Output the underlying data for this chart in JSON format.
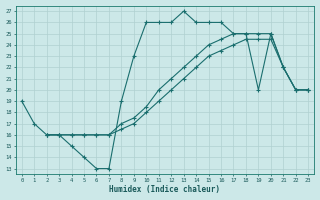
{
  "title": "",
  "xlabel": "Humidex (Indice chaleur)",
  "bg_color": "#cce8e8",
  "grid_color": "#b0d0d0",
  "line_color": "#1a6e6e",
  "xlim": [
    -0.5,
    23.5
  ],
  "ylim": [
    12.5,
    27.5
  ],
  "xticks": [
    0,
    1,
    2,
    3,
    4,
    5,
    6,
    7,
    8,
    9,
    10,
    11,
    12,
    13,
    14,
    15,
    16,
    17,
    18,
    19,
    20,
    21,
    22,
    23
  ],
  "yticks": [
    13,
    14,
    15,
    16,
    17,
    18,
    19,
    20,
    21,
    22,
    23,
    24,
    25,
    26,
    27
  ],
  "line1_x": [
    0,
    1,
    2,
    3,
    4,
    5,
    6,
    7,
    8,
    9,
    10,
    11,
    12,
    13,
    14,
    15,
    16,
    17,
    18,
    19,
    20,
    21,
    22,
    23
  ],
  "line1_y": [
    19,
    17,
    16,
    16,
    15,
    14,
    13,
    13,
    19,
    23,
    26,
    26,
    26,
    27,
    26,
    26,
    26,
    25,
    25,
    20,
    25,
    22,
    20,
    20
  ],
  "line2_x": [
    2,
    3,
    4,
    5,
    6,
    7,
    8,
    9,
    10,
    11,
    12,
    13,
    14,
    15,
    16,
    17,
    18,
    19,
    20,
    21,
    22,
    23
  ],
  "line2_y": [
    16,
    16,
    16,
    16,
    16,
    16,
    17,
    17.5,
    18.5,
    20,
    21,
    22,
    23,
    24,
    24.5,
    25,
    25,
    25,
    25,
    22,
    20,
    20
  ],
  "line3_x": [
    2,
    3,
    4,
    5,
    6,
    7,
    8,
    9,
    10,
    11,
    12,
    13,
    14,
    15,
    16,
    17,
    18,
    19,
    20,
    21,
    22,
    23
  ],
  "line3_y": [
    16,
    16,
    16,
    16,
    16,
    16,
    16.5,
    17,
    18,
    19,
    20,
    21,
    22,
    23,
    23.5,
    24,
    24.5,
    24.5,
    24.5,
    22,
    20,
    20
  ]
}
